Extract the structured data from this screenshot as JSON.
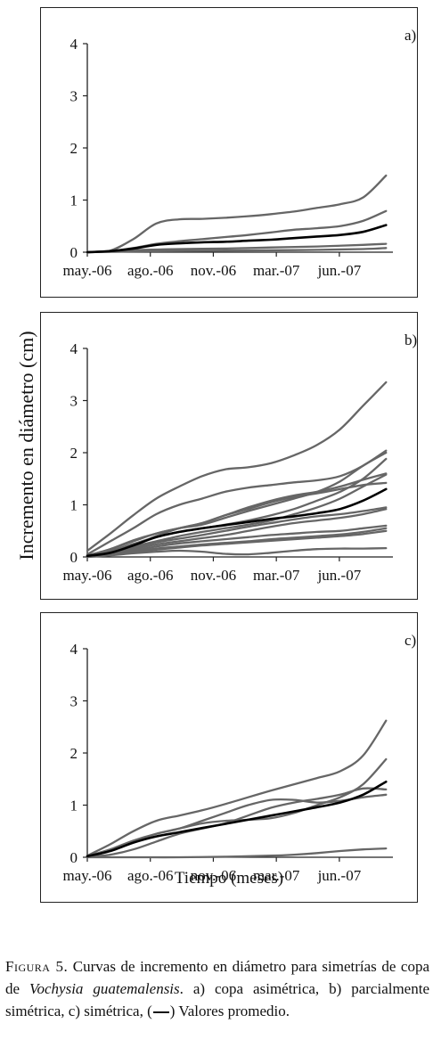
{
  "y_axis_label": "Incremento en diámetro (cm)",
  "x_axis_label": "Tiempo (meses)",
  "caption": {
    "figure_label": "Figura 5.",
    "text_before_species": " Curvas de incremento en diámetro para simetrías de copa de ",
    "species": "Vochysia guatemalensis",
    "text_after_species": ". a) copa asimétrica, b) parcialmente simétrica, c) simétrica, (",
    "text_end": ") Valores promedio."
  },
  "colors": {
    "individual": "#666666",
    "average": "#000000",
    "axis": "#222222"
  },
  "chart_data": [
    {
      "type": "line",
      "panel_label": "a)",
      "x_categories": [
        "may.-06",
        "ago.-06",
        "nov.-06",
        "mar.-07",
        "jun.-07"
      ],
      "x_range": [
        0,
        13.3
      ],
      "ylim": [
        0,
        4
      ],
      "yticks": [
        0,
        1,
        2,
        3,
        4
      ],
      "grid": false,
      "series": [
        {
          "x": [
            0,
            1,
            2,
            3,
            4,
            5,
            6,
            7,
            8,
            9,
            10,
            11,
            12,
            13
          ],
          "y": [
            0,
            0.03,
            0.25,
            0.55,
            0.63,
            0.64,
            0.66,
            0.69,
            0.73,
            0.78,
            0.85,
            0.92,
            1.05,
            1.47
          ]
        },
        {
          "x": [
            0,
            1,
            2,
            3,
            4,
            5,
            6,
            7,
            8,
            9,
            10,
            11,
            12,
            13
          ],
          "y": [
            0,
            0.02,
            0.08,
            0.16,
            0.21,
            0.25,
            0.29,
            0.33,
            0.38,
            0.43,
            0.46,
            0.5,
            0.6,
            0.79
          ]
        },
        {
          "x": [
            0,
            2,
            4,
            6,
            8,
            10,
            12,
            13
          ],
          "y": [
            0,
            0.04,
            0.06,
            0.07,
            0.09,
            0.11,
            0.14,
            0.16
          ]
        },
        {
          "x": [
            0,
            3,
            6,
            9,
            12,
            13
          ],
          "y": [
            0,
            0.02,
            0.03,
            0.04,
            0.06,
            0.08
          ]
        },
        {
          "average": true,
          "x": [
            0,
            1,
            2,
            3,
            4,
            5,
            6,
            7,
            8,
            9,
            10,
            11,
            12,
            13
          ],
          "y": [
            0,
            0.02,
            0.07,
            0.14,
            0.17,
            0.19,
            0.2,
            0.22,
            0.24,
            0.27,
            0.3,
            0.33,
            0.39,
            0.52
          ]
        }
      ]
    },
    {
      "type": "line",
      "panel_label": "b)",
      "x_categories": [
        "may.-06",
        "ago.-06",
        "nov.-06",
        "mar.-07",
        "jun.-07"
      ],
      "x_range": [
        0,
        13.3
      ],
      "ylim": [
        0,
        4
      ],
      "yticks": [
        0,
        1,
        2,
        3,
        4
      ],
      "grid": false,
      "series": [
        {
          "x": [
            0,
            1,
            2,
            3,
            4,
            5,
            6,
            7,
            8,
            9,
            10,
            11,
            12,
            13
          ],
          "y": [
            0.12,
            0.45,
            0.8,
            1.12,
            1.35,
            1.55,
            1.68,
            1.72,
            1.8,
            1.95,
            2.15,
            2.45,
            2.9,
            3.35
          ]
        },
        {
          "x": [
            0,
            1,
            2,
            3,
            4,
            5,
            6,
            7,
            8,
            9,
            10,
            11,
            12,
            13
          ],
          "y": [
            0.05,
            0.3,
            0.55,
            0.82,
            1.0,
            1.12,
            1.25,
            1.33,
            1.38,
            1.43,
            1.47,
            1.55,
            1.75,
            2.04
          ]
        },
        {
          "x": [
            0,
            1,
            2,
            3,
            4,
            5,
            6,
            7,
            8,
            9,
            10,
            11,
            12,
            13
          ],
          "y": [
            0.03,
            0.15,
            0.32,
            0.45,
            0.55,
            0.62,
            0.75,
            0.88,
            1.0,
            1.12,
            1.25,
            1.45,
            1.75,
            2.0
          ]
        },
        {
          "x": [
            0,
            1,
            2,
            3,
            4,
            5,
            6,
            7,
            8,
            9,
            10,
            11,
            12,
            13
          ],
          "y": [
            0.02,
            0.12,
            0.25,
            0.38,
            0.48,
            0.55,
            0.62,
            0.7,
            0.8,
            0.92,
            1.08,
            1.25,
            1.5,
            1.88
          ]
        },
        {
          "x": [
            0,
            1,
            2,
            3,
            4,
            5,
            6,
            7,
            8,
            9,
            10,
            11,
            12,
            13
          ],
          "y": [
            0.02,
            0.15,
            0.3,
            0.45,
            0.55,
            0.65,
            0.8,
            0.95,
            1.08,
            1.18,
            1.25,
            1.35,
            1.48,
            1.6
          ]
        },
        {
          "x": [
            0,
            1,
            2,
            3,
            4,
            5,
            6,
            7,
            8,
            9,
            10,
            11,
            12,
            13
          ],
          "y": [
            0.02,
            0.1,
            0.22,
            0.4,
            0.55,
            0.65,
            0.8,
            0.92,
            1.05,
            1.15,
            1.22,
            1.3,
            1.38,
            1.42
          ]
        },
        {
          "x": [
            0,
            1,
            2,
            3,
            4,
            5,
            6,
            7,
            8,
            9,
            10,
            11,
            12,
            13
          ],
          "y": [
            0.02,
            0.08,
            0.2,
            0.3,
            0.4,
            0.48,
            0.55,
            0.62,
            0.7,
            0.82,
            0.95,
            1.12,
            1.35,
            1.58
          ]
        },
        {
          "x": [
            0,
            1,
            2,
            3,
            4,
            5,
            6,
            7,
            8,
            9,
            10,
            11,
            12,
            13
          ],
          "y": [
            0.01,
            0.08,
            0.18,
            0.28,
            0.35,
            0.42,
            0.5,
            0.58,
            0.65,
            0.72,
            0.78,
            0.82,
            0.88,
            0.95
          ]
        },
        {
          "x": [
            0,
            1,
            2,
            3,
            4,
            5,
            6,
            7,
            8,
            9,
            10,
            11,
            12,
            13
          ],
          "y": [
            0.01,
            0.06,
            0.15,
            0.24,
            0.3,
            0.36,
            0.42,
            0.5,
            0.58,
            0.65,
            0.7,
            0.75,
            0.82,
            0.92
          ]
        },
        {
          "x": [
            0,
            1,
            2,
            3,
            4,
            5,
            6,
            7,
            8,
            9,
            10,
            11,
            12,
            13
          ],
          "y": [
            0.01,
            0.05,
            0.12,
            0.2,
            0.26,
            0.3,
            0.34,
            0.38,
            0.42,
            0.45,
            0.48,
            0.5,
            0.55,
            0.6
          ]
        },
        {
          "x": [
            0,
            1,
            2,
            3,
            4,
            5,
            6,
            7,
            8,
            9,
            10,
            11,
            12,
            13
          ],
          "y": [
            0.01,
            0.04,
            0.1,
            0.16,
            0.2,
            0.24,
            0.27,
            0.3,
            0.34,
            0.37,
            0.4,
            0.43,
            0.48,
            0.55
          ]
        },
        {
          "x": [
            0,
            1,
            2,
            3,
            4,
            5,
            6,
            7,
            8,
            9,
            10,
            11,
            12,
            13
          ],
          "y": [
            0.01,
            0.04,
            0.08,
            0.14,
            0.18,
            0.22,
            0.25,
            0.28,
            0.31,
            0.34,
            0.37,
            0.4,
            0.44,
            0.5
          ]
        },
        {
          "x": [
            0,
            1,
            2,
            3,
            4,
            5,
            6,
            7,
            8,
            9,
            10,
            11,
            12,
            13
          ],
          "y": [
            0,
            0.03,
            0.07,
            0.1,
            0.12,
            0.1,
            0.06,
            0.05,
            0.08,
            0.12,
            0.15,
            0.16,
            0.16,
            0.17
          ]
        },
        {
          "average": true,
          "x": [
            0,
            1,
            2,
            3,
            4,
            5,
            6,
            7,
            8,
            9,
            10,
            11,
            12,
            13
          ],
          "y": [
            0.02,
            0.08,
            0.22,
            0.38,
            0.48,
            0.55,
            0.61,
            0.67,
            0.73,
            0.78,
            0.84,
            0.92,
            1.08,
            1.3
          ]
        }
      ]
    },
    {
      "type": "line",
      "panel_label": "c)",
      "x_categories": [
        "may.-06",
        "ago.-06",
        "nov.-06",
        "mar.-07",
        "jun.-07"
      ],
      "x_range": [
        0,
        13.3
      ],
      "ylim": [
        0,
        4
      ],
      "yticks": [
        0,
        1,
        2,
        3,
        4
      ],
      "grid": false,
      "series": [
        {
          "x": [
            0,
            1,
            2,
            3,
            4,
            5,
            6,
            7,
            8,
            9,
            10,
            11,
            12,
            13
          ],
          "y": [
            0.03,
            0.25,
            0.5,
            0.7,
            0.8,
            0.9,
            1.02,
            1.15,
            1.28,
            1.4,
            1.52,
            1.65,
            1.95,
            2.62
          ]
        },
        {
          "x": [
            0,
            1,
            2,
            3,
            4,
            5,
            6,
            7,
            8,
            9,
            10,
            11,
            12,
            13
          ],
          "y": [
            0.02,
            0.15,
            0.32,
            0.45,
            0.55,
            0.65,
            0.7,
            0.72,
            0.75,
            0.85,
            1.0,
            1.15,
            1.4,
            1.88
          ]
        },
        {
          "x": [
            0,
            1,
            2,
            3,
            4,
            5,
            6,
            7,
            8,
            9,
            10,
            11,
            12,
            13
          ],
          "y": [
            0.02,
            0.15,
            0.3,
            0.45,
            0.55,
            0.7,
            0.85,
            1.0,
            1.1,
            1.1,
            1.05,
            1.08,
            1.15,
            1.2
          ]
        },
        {
          "x": [
            0,
            1,
            2,
            3,
            4,
            5,
            6,
            7,
            8,
            9,
            10,
            11,
            12,
            13
          ],
          "y": [
            0.01,
            0.05,
            0.15,
            0.3,
            0.45,
            0.55,
            0.65,
            0.8,
            0.95,
            1.05,
            1.12,
            1.2,
            1.32,
            1.3
          ]
        },
        {
          "x": [
            0,
            2,
            4,
            6,
            8,
            9,
            10,
            11,
            12,
            13
          ],
          "y": [
            0,
            0,
            0,
            0.01,
            0.03,
            0.05,
            0.08,
            0.12,
            0.15,
            0.17
          ]
        },
        {
          "average": true,
          "x": [
            0,
            1,
            2,
            3,
            4,
            5,
            6,
            7,
            8,
            9,
            10,
            11,
            12,
            13
          ],
          "y": [
            0.02,
            0.12,
            0.28,
            0.4,
            0.48,
            0.56,
            0.64,
            0.72,
            0.8,
            0.88,
            0.96,
            1.05,
            1.2,
            1.45
          ]
        }
      ]
    }
  ]
}
